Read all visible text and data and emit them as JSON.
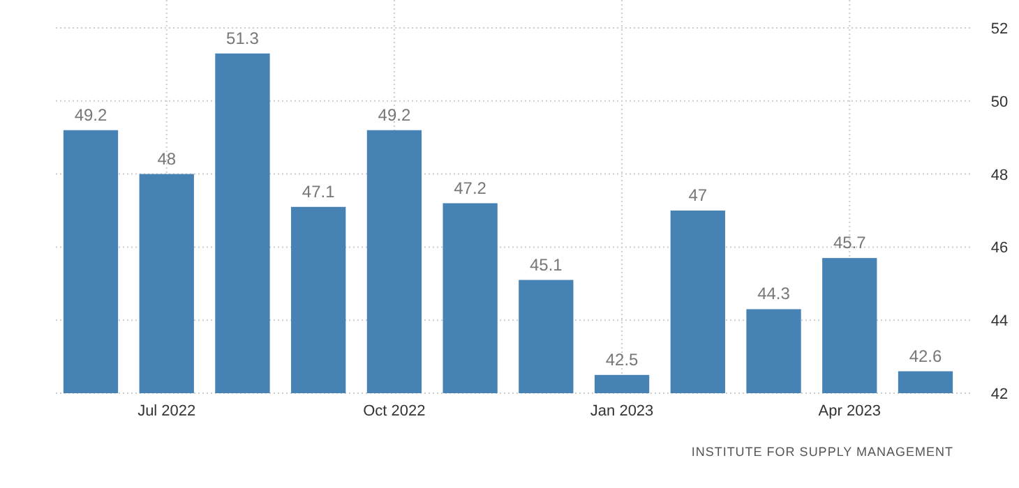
{
  "chart_data": {
    "type": "bar",
    "categories": [
      null,
      "Jul 2022",
      null,
      null,
      "Oct 2022",
      null,
      null,
      "Jan 2023",
      null,
      null,
      "Apr 2023",
      null
    ],
    "values": [
      49.2,
      48,
      51.3,
      47.1,
      49.2,
      47.2,
      45.1,
      42.5,
      47,
      44.3,
      45.7,
      42.6
    ],
    "color": "#4682b4",
    "ylim": [
      42,
      52
    ],
    "yticks": [
      42,
      44,
      46,
      48,
      50,
      52
    ],
    "grid": true,
    "data_labels": true,
    "annotations": [
      "INSTITUTE FOR SUPPLY MANAGEMENT"
    ]
  }
}
